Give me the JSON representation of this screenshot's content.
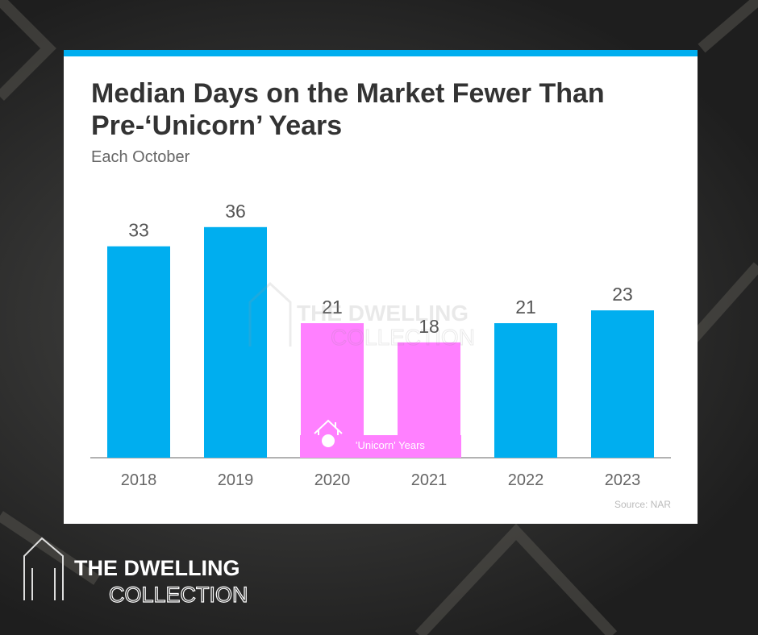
{
  "chart_data": {
    "type": "bar",
    "title": "Median Days on the Market Fewer Than Pre-‘Unicorn’ Years",
    "subtitle": "Each October",
    "categories": [
      "2018",
      "2019",
      "2020",
      "2021",
      "2022",
      "2023"
    ],
    "values": [
      33,
      36,
      21,
      18,
      21,
      23
    ],
    "colors": [
      "#00aeef",
      "#00aeef",
      "#ff80ff",
      "#ff80ff",
      "#00aeef",
      "#00aeef"
    ],
    "ylim": [
      0,
      40
    ],
    "annotation": "'Unicorn' Years",
    "source": "Source: NAR"
  },
  "brand": {
    "line1": "THE DWELLING",
    "line2": "COLLECTION"
  }
}
